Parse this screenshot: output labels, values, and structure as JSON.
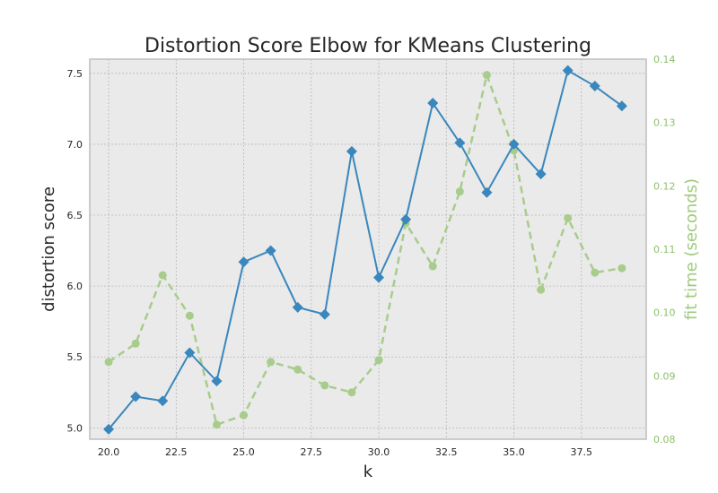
{
  "chart_data": {
    "type": "line",
    "title": "Distortion Score Elbow for KMeans Clustering",
    "xlabel": "k",
    "ylabel": "distortion score",
    "y2label": "fit time (seconds)",
    "xlim": [
      19.3,
      39.9
    ],
    "ylim": [
      4.92,
      7.6
    ],
    "y2lim": [
      0.08,
      0.14
    ],
    "grid": true,
    "x": [
      20,
      21,
      22,
      23,
      24,
      25,
      26,
      27,
      28,
      29,
      30,
      31,
      32,
      33,
      34,
      35,
      36,
      37,
      38,
      39
    ],
    "x_ticks": [
      "20.0",
      "22.5",
      "25.0",
      "27.5",
      "30.0",
      "32.5",
      "35.0",
      "37.5"
    ],
    "x_tick_values": [
      20,
      22.5,
      25,
      27.5,
      30,
      32.5,
      35,
      37.5
    ],
    "y_ticks": [
      "5.0",
      "5.5",
      "6.0",
      "6.5",
      "7.0",
      "7.5"
    ],
    "y_tick_values": [
      5.0,
      5.5,
      6.0,
      6.5,
      7.0,
      7.5
    ],
    "y2_ticks": [
      "0.08",
      "0.09",
      "0.10",
      "0.11",
      "0.12",
      "0.13",
      "0.14"
    ],
    "y2_tick_values": [
      0.08,
      0.09,
      0.1,
      0.11,
      0.12,
      0.13,
      0.14
    ],
    "series": [
      {
        "axis": "left",
        "color": "#3a87bd",
        "marker": "diamond",
        "values": [
          4.99,
          5.22,
          5.19,
          5.53,
          5.33,
          6.17,
          6.25,
          5.85,
          5.8,
          6.95,
          6.06,
          6.47,
          7.29,
          7.01,
          6.66,
          7.0,
          6.79,
          7.52,
          7.41,
          7.27
        ]
      },
      {
        "axis": "right",
        "color": "#a8cc8c",
        "marker": "circle",
        "dashed": true,
        "values": [
          0.0922,
          0.0951,
          0.1059,
          0.0995,
          0.0823,
          0.0838,
          0.0922,
          0.091,
          0.0885,
          0.0874,
          0.0925,
          0.1141,
          0.1073,
          0.1191,
          0.1375,
          0.1256,
          0.1036,
          0.1149,
          0.1063,
          0.107
        ]
      }
    ]
  }
}
